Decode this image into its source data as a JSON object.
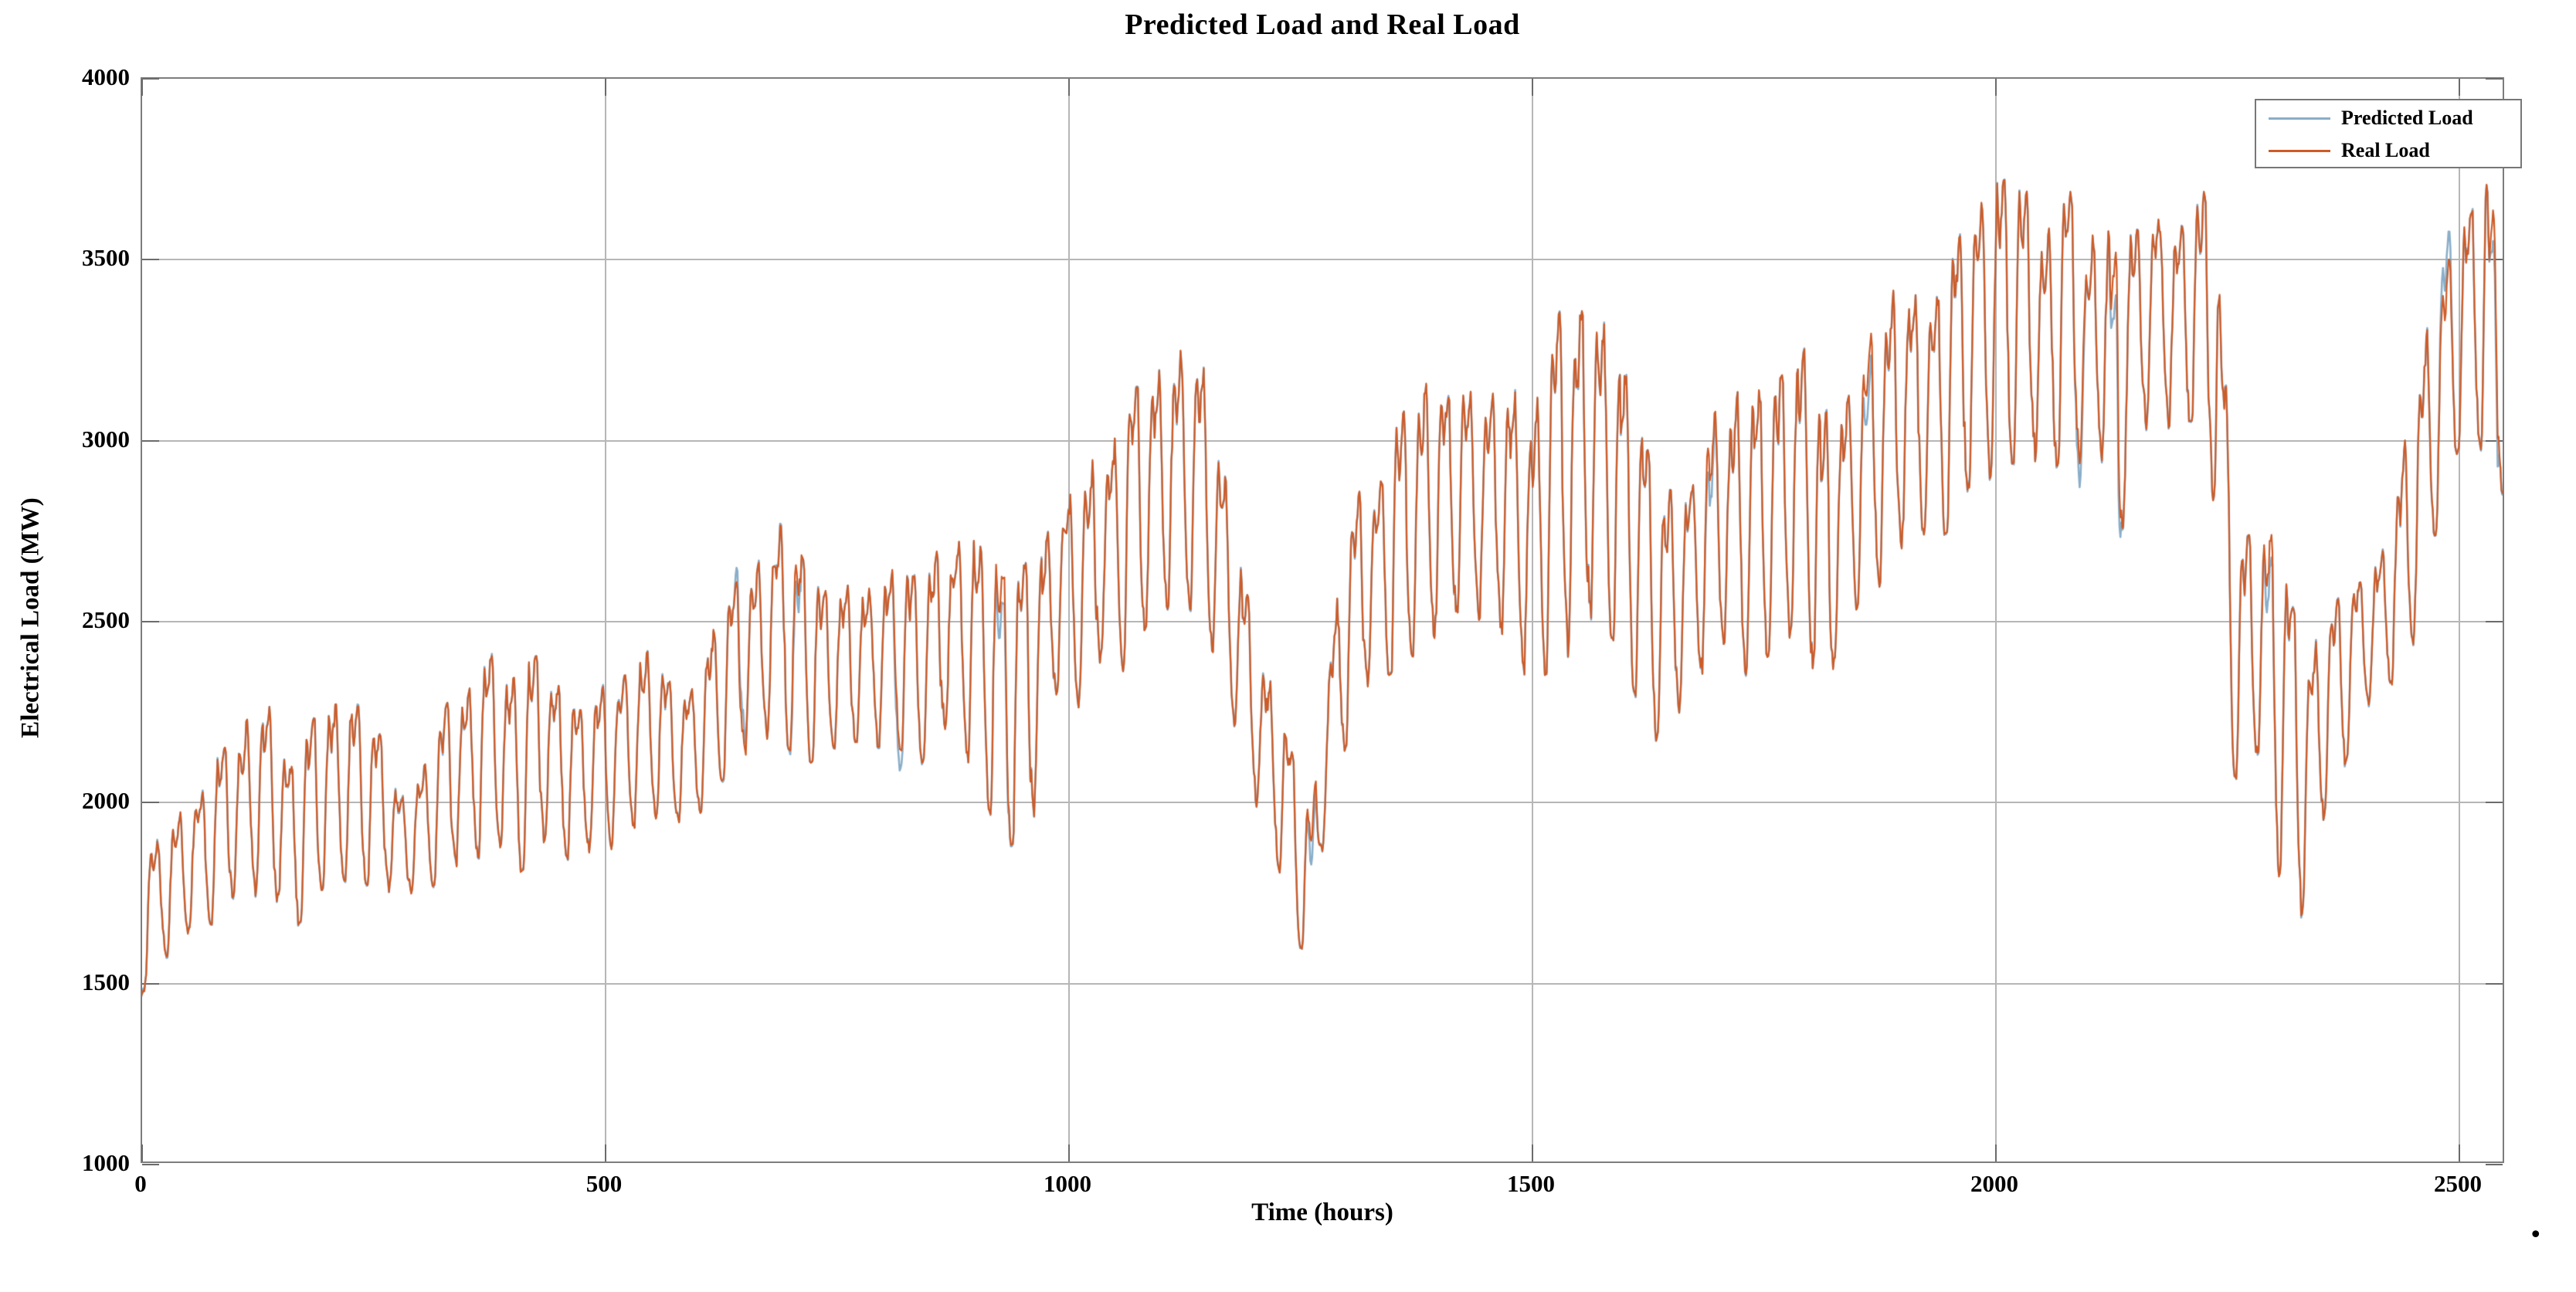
{
  "footer_dot": ".",
  "colors": {
    "predicted_line": "#8aaec9",
    "real_line": "#ce5b27",
    "grid": "#b6b6b6",
    "axis_border": "#7d7d7d",
    "tick_stub": "#6b6b6b",
    "text": "#000000",
    "background": "#ffffff"
  },
  "chart_data": {
    "type": "line",
    "title": "Predicted Load and Real Load",
    "xlabel": "Time (hours)",
    "ylabel": "Electrical Load (MW)",
    "xlim": [
      0,
      2550
    ],
    "ylim": [
      1000,
      4000
    ],
    "grid": "on",
    "legend_position": "top-right",
    "x_ticks": {
      "values": [
        0,
        500,
        1000,
        1500,
        2000,
        2500
      ],
      "labels": [
        "0",
        "500",
        "1000",
        "1500",
        "2000",
        "2500"
      ]
    },
    "y_ticks": {
      "values": [
        1000,
        1500,
        2000,
        2500,
        3000,
        3500,
        4000
      ],
      "labels": [
        "1000",
        "1500",
        "2000",
        "2500",
        "3000",
        "3500",
        "4000"
      ]
    },
    "series": [
      {
        "name": "Predicted Load",
        "color": "#8aaec9",
        "width": 2.6
      },
      {
        "name": "Real Load",
        "color": "#ce5b27",
        "width": 2.2
      }
    ],
    "sampling_step_hours": 1,
    "daily_period_hours": 24,
    "daily_profile": [
      [
        0,
        -0.52
      ],
      [
        1,
        -0.68
      ],
      [
        2,
        -0.82
      ],
      [
        3,
        -0.93
      ],
      [
        4,
        -1.0
      ],
      [
        5,
        -0.94
      ],
      [
        6,
        -0.72
      ],
      [
        7,
        -0.38
      ],
      [
        8,
        0.05
      ],
      [
        9,
        0.38
      ],
      [
        10,
        0.66
      ],
      [
        11,
        0.84
      ],
      [
        12,
        0.78
      ],
      [
        13,
        0.62
      ],
      [
        14,
        0.55
      ],
      [
        15,
        0.62
      ],
      [
        16,
        0.74
      ],
      [
        17,
        0.86
      ],
      [
        18,
        0.95
      ],
      [
        19,
        1.0
      ],
      [
        20,
        0.82
      ],
      [
        21,
        0.45
      ],
      [
        22,
        0.02
      ],
      [
        23,
        -0.28
      ],
      [
        24,
        -0.52
      ]
    ],
    "envelope_keyframes": [
      [
        0,
        1450,
        1450
      ],
      [
        8,
        1500,
        1880
      ],
      [
        24,
        1560,
        1900
      ],
      [
        48,
        1620,
        1980
      ],
      [
        72,
        1650,
        2060
      ],
      [
        96,
        1700,
        2160
      ],
      [
        120,
        1720,
        2250
      ],
      [
        144,
        1700,
        2250
      ],
      [
        168,
        1650,
        2100
      ],
      [
        192,
        1750,
        2250
      ],
      [
        216,
        1780,
        2260
      ],
      [
        240,
        1780,
        2250
      ],
      [
        264,
        1720,
        2150
      ],
      [
        288,
        1740,
        2000
      ],
      [
        312,
        1760,
        2120
      ],
      [
        336,
        1800,
        2300
      ],
      [
        360,
        1850,
        2350
      ],
      [
        384,
        1820,
        2400
      ],
      [
        408,
        1800,
        2350
      ],
      [
        432,
        1850,
        2400
      ],
      [
        456,
        1800,
        2350
      ],
      [
        480,
        1850,
        2260
      ],
      [
        504,
        1860,
        2320
      ],
      [
        528,
        1900,
        2400
      ],
      [
        552,
        1950,
        2420
      ],
      [
        576,
        1900,
        2320
      ],
      [
        600,
        1950,
        2360
      ],
      [
        624,
        2050,
        2500
      ],
      [
        648,
        2100,
        2620
      ],
      [
        672,
        2150,
        2700
      ],
      [
        696,
        2150,
        2790
      ],
      [
        720,
        2100,
        2620
      ],
      [
        744,
        2150,
        2560
      ],
      [
        768,
        2100,
        2600
      ],
      [
        792,
        2150,
        2620
      ],
      [
        816,
        2150,
        2650
      ],
      [
        840,
        2100,
        2600
      ],
      [
        864,
        2150,
        2700
      ],
      [
        888,
        2100,
        2780
      ],
      [
        912,
        2000,
        2700
      ],
      [
        930,
        1870,
        2600
      ],
      [
        960,
        1900,
        2650
      ],
      [
        984,
        2250,
        2780
      ],
      [
        1008,
        2250,
        2880
      ],
      [
        1032,
        2300,
        2950
      ],
      [
        1056,
        2350,
        3050
      ],
      [
        1080,
        2400,
        3150
      ],
      [
        1104,
        2500,
        3250
      ],
      [
        1128,
        2550,
        3300
      ],
      [
        1152,
        2450,
        3150
      ],
      [
        1176,
        2250,
        2800
      ],
      [
        1200,
        2000,
        2500
      ],
      [
        1224,
        1850,
        2300
      ],
      [
        1250,
        1600,
        2050
      ],
      [
        1264,
        1560,
        1950
      ],
      [
        1278,
        1900,
        2350
      ],
      [
        1300,
        2150,
        2750
      ],
      [
        1324,
        2300,
        2900
      ],
      [
        1348,
        2350,
        3000
      ],
      [
        1372,
        2400,
        3100
      ],
      [
        1396,
        2450,
        3200
      ],
      [
        1420,
        2500,
        3150
      ],
      [
        1444,
        2500,
        3100
      ],
      [
        1468,
        2450,
        3150
      ],
      [
        1492,
        2300,
        3100
      ],
      [
        1516,
        2350,
        3250
      ],
      [
        1540,
        2400,
        3380
      ],
      [
        1564,
        2450,
        3450
      ],
      [
        1588,
        2450,
        3250
      ],
      [
        1612,
        2300,
        3100
      ],
      [
        1636,
        2080,
        2850
      ],
      [
        1660,
        2200,
        2900
      ],
      [
        1684,
        2350,
        3000
      ],
      [
        1708,
        2400,
        3100
      ],
      [
        1732,
        2350,
        3150
      ],
      [
        1756,
        2400,
        3100
      ],
      [
        1780,
        2450,
        3200
      ],
      [
        1804,
        2350,
        3250
      ],
      [
        1818,
        1960,
        3050
      ],
      [
        1832,
        2450,
        3100
      ],
      [
        1856,
        2550,
        3250
      ],
      [
        1880,
        2600,
        3350
      ],
      [
        1904,
        2650,
        3450
      ],
      [
        1928,
        2700,
        3400
      ],
      [
        1952,
        2750,
        3500
      ],
      [
        1976,
        2850,
        3600
      ],
      [
        2000,
        2900,
        3700
      ],
      [
        2030,
        2950,
        3700
      ],
      [
        2055,
        2900,
        3550
      ],
      [
        2079,
        2950,
        3700
      ],
      [
        2100,
        2900,
        3500
      ],
      [
        2120,
        2900,
        3700
      ],
      [
        2131,
        2150,
        3550
      ],
      [
        2142,
        2950,
        3600
      ],
      [
        2160,
        3000,
        3550
      ],
      [
        2174,
        3000,
        3700
      ],
      [
        2196,
        3050,
        3600
      ],
      [
        2218,
        3050,
        3680
      ],
      [
        2240,
        2700,
        3650
      ],
      [
        2252,
        2100,
        3100
      ],
      [
        2264,
        2050,
        2700
      ],
      [
        2288,
        2150,
        2750
      ],
      [
        2306,
        1750,
        2700
      ],
      [
        2318,
        2050,
        2550
      ],
      [
        2332,
        1580,
        2450
      ],
      [
        2348,
        1900,
        2500
      ],
      [
        2372,
        2050,
        2550
      ],
      [
        2396,
        2250,
        2600
      ],
      [
        2420,
        2300,
        2700
      ],
      [
        2444,
        2350,
        3000
      ],
      [
        2468,
        2600,
        3300
      ],
      [
        2492,
        2900,
        3500
      ],
      [
        2516,
        3100,
        3620
      ],
      [
        2530,
        2900,
        3790
      ],
      [
        2548,
        2750,
        3400
      ]
    ],
    "prediction_divergence_windows": [
      [
        640,
        655,
        55
      ],
      [
        700,
        714,
        -50
      ],
      [
        810,
        824,
        -55
      ],
      [
        920,
        938,
        -70
      ],
      [
        1258,
        1270,
        -60
      ],
      [
        1686,
        1700,
        -65
      ],
      [
        1856,
        1870,
        -85
      ],
      [
        2086,
        2100,
        -60
      ],
      [
        2124,
        2138,
        -120
      ],
      [
        2290,
        2302,
        -70
      ],
      [
        2478,
        2496,
        80
      ],
      [
        2534,
        2546,
        -90
      ]
    ],
    "reconstruction": {
      "day_amp_base": 0.78,
      "day_amp_rand": 0.4,
      "noise1": 0.16,
      "noise2": 0.1,
      "mid_shift": 0.1,
      "pred_jitter": 12,
      "clamp_hi": 1.04
    }
  }
}
